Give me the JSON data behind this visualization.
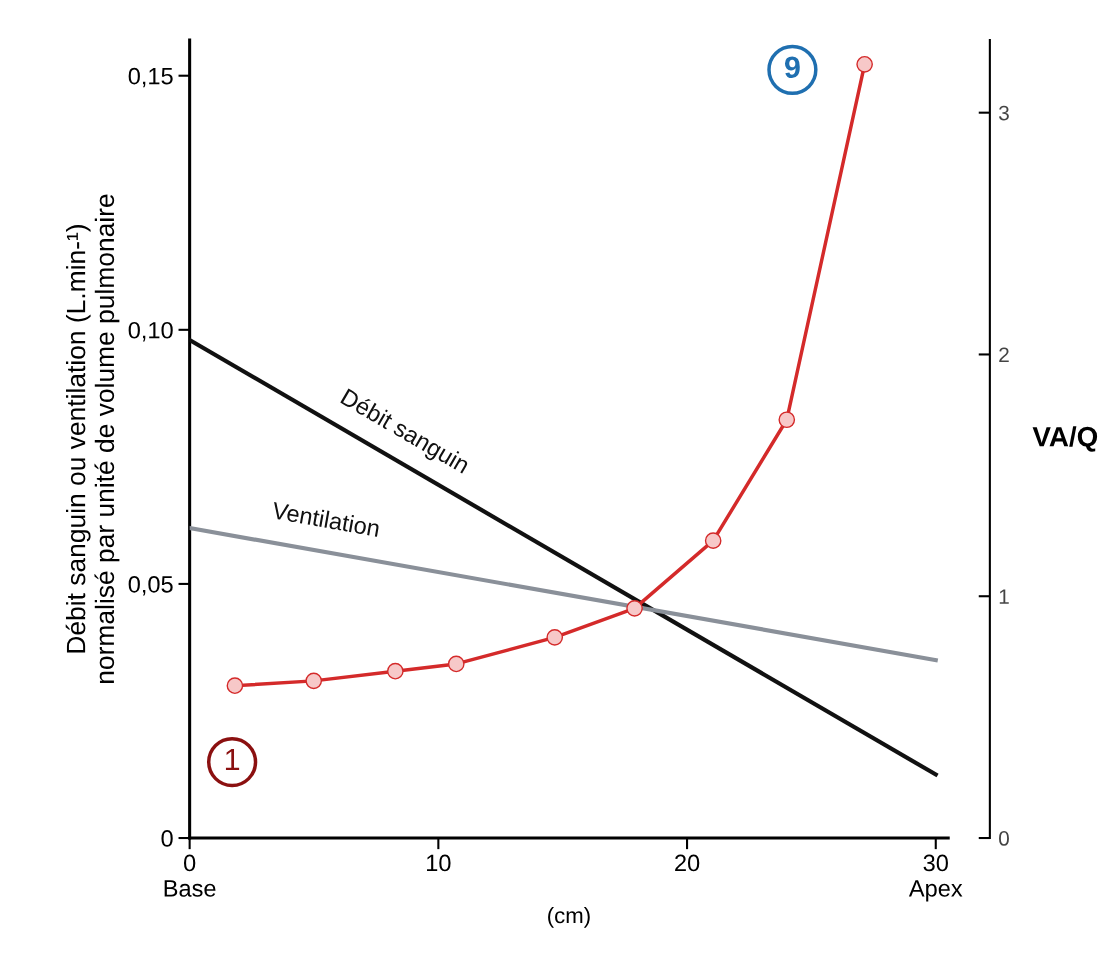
{
  "chart_data": {
    "type": "line",
    "xlabel": "(cm)",
    "ylabel": "Débit sanguin ou ventilation (L.min-¹)\nnormalisé par unité de volume pulmonaire",
    "y2label": "VA/Q",
    "xlim": [
      0,
      30.5
    ],
    "xticks": [
      {
        "value": 0,
        "label": "0\nBase"
      },
      10,
      20,
      {
        "value": 30,
        "label": "30\nApex"
      }
    ],
    "ylim": [
      0,
      0.157
    ],
    "yticks": [
      {
        "value": 0,
        "label": "0"
      },
      {
        "value": 0.05,
        "label": "0,05"
      },
      {
        "value": 0.1,
        "label": "0,10"
      },
      {
        "value": 0.15,
        "label": "0,15"
      }
    ],
    "y2lim": [
      0,
      3.3
    ],
    "y2ticks": [
      0,
      1,
      2,
      3
    ],
    "grid": false,
    "legend": false,
    "series": [
      {
        "name": "Débit sanguin",
        "color": "#111111",
        "x": [
          0,
          30
        ],
        "values": [
          0.098,
          0.0125
        ],
        "marker": "none"
      },
      {
        "name": "Ventilation",
        "color": "#8a9099",
        "x": [
          0,
          30
        ],
        "values": [
          0.061,
          0.035
        ],
        "marker": "none"
      },
      {
        "color": "#d42a2a",
        "axis": "y2",
        "marker": "circle",
        "x": [
          1.82,
          4.99,
          8.27,
          10.72,
          14.68,
          17.89,
          21.05,
          24.01,
          27.14
        ],
        "values": [
          0.63,
          0.65,
          0.69,
          0.72,
          0.83,
          0.95,
          1.23,
          1.73,
          3.2
        ]
      }
    ],
    "annotations": [
      "1",
      "9"
    ]
  }
}
